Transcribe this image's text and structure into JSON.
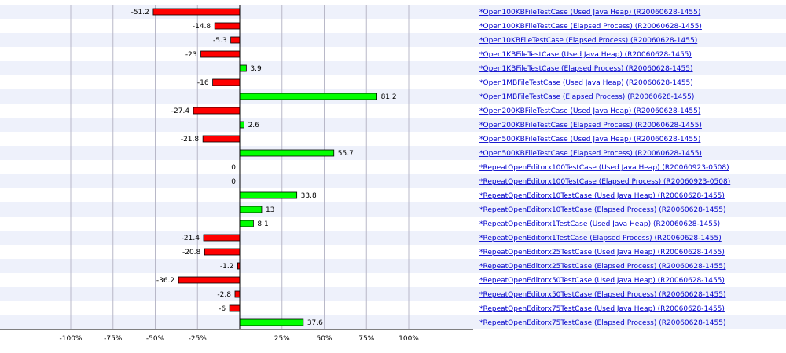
{
  "chart_data": {
    "type": "bar",
    "orientation": "horizontal",
    "grid": true,
    "xlim": [
      -100,
      100
    ],
    "tick_values": [
      -100,
      -75,
      -50,
      -25,
      0,
      25,
      50,
      75,
      100
    ],
    "tick_labels": [
      "-100%",
      "-75%",
      "-50%",
      "-25%",
      "",
      "25%",
      "50%",
      "75%",
      "100%"
    ],
    "colors": {
      "negative": "#ff0000",
      "positive": "#00ff00",
      "row_alt": "#eef1fb",
      "link": "#0000cc"
    },
    "categories": [
      "*Open100KBFileTestCase (Used Java Heap) (R20060628-1455)",
      "*Open100KBFileTestCase (Elapsed Process) (R20060628-1455)",
      "*Open10KBFileTestCase (Elapsed Process) (R20060628-1455)",
      "*Open1KBFileTestCase (Used Java Heap) (R20060628-1455)",
      "*Open1KBFileTestCase (Elapsed Process) (R20060628-1455)",
      "*Open1MBFileTestCase (Used Java Heap) (R20060628-1455)",
      "*Open1MBFileTestCase (Elapsed Process) (R20060628-1455)",
      "*Open200KBFileTestCase (Used Java Heap) (R20060628-1455)",
      "*Open200KBFileTestCase (Elapsed Process) (R20060628-1455)",
      "*Open500KBFileTestCase (Used Java Heap) (R20060628-1455)",
      "*Open500KBFileTestCase (Elapsed Process) (R20060628-1455)",
      "*RepeatOpenEditorx100TestCase (Used Java Heap) (R20060923-0508)",
      "*RepeatOpenEditorx100TestCase (Elapsed Process) (R20060923-0508)",
      "*RepeatOpenEditorx10TestCase (Used Java Heap) (R20060628-1455)",
      "*RepeatOpenEditorx10TestCase (Elapsed Process) (R20060628-1455)",
      "*RepeatOpenEditorx1TestCase (Used Java Heap) (R20060628-1455)",
      "*RepeatOpenEditorx1TestCase (Elapsed Process) (R20060628-1455)",
      "*RepeatOpenEditorx25TestCase (Used Java Heap) (R20060628-1455)",
      "*RepeatOpenEditorx25TestCase (Elapsed Process) (R20060628-1455)",
      "*RepeatOpenEditorx50TestCase (Used Java Heap) (R20060628-1455)",
      "*RepeatOpenEditorx50TestCase (Elapsed Process) (R20060628-1455)",
      "*RepeatOpenEditorx75TestCase (Used Java Heap) (R20060628-1455)",
      "*RepeatOpenEditorx75TestCase (Elapsed Process) (R20060628-1455)"
    ],
    "values": [
      -51.2,
      -14.8,
      -5.3,
      -23,
      3.9,
      -16,
      81.2,
      -27.4,
      2.6,
      -21.8,
      55.7,
      0,
      0,
      33.8,
      13,
      8.1,
      -21.4,
      -20.8,
      -1.2,
      -36.2,
      -2.8,
      -6,
      37.6
    ],
    "value_labels": [
      "-51.2",
      "-14.8",
      "-5.3",
      "-23",
      "3.9",
      "-16",
      "81.2",
      "-27.4",
      "2.6",
      "-21.8",
      "55.7",
      "0",
      "0",
      "33.8",
      "13",
      "8.1",
      "-21.4",
      "-20.8",
      "-1.2",
      "-36.2",
      "-2.8",
      "-6",
      "37.6"
    ]
  }
}
